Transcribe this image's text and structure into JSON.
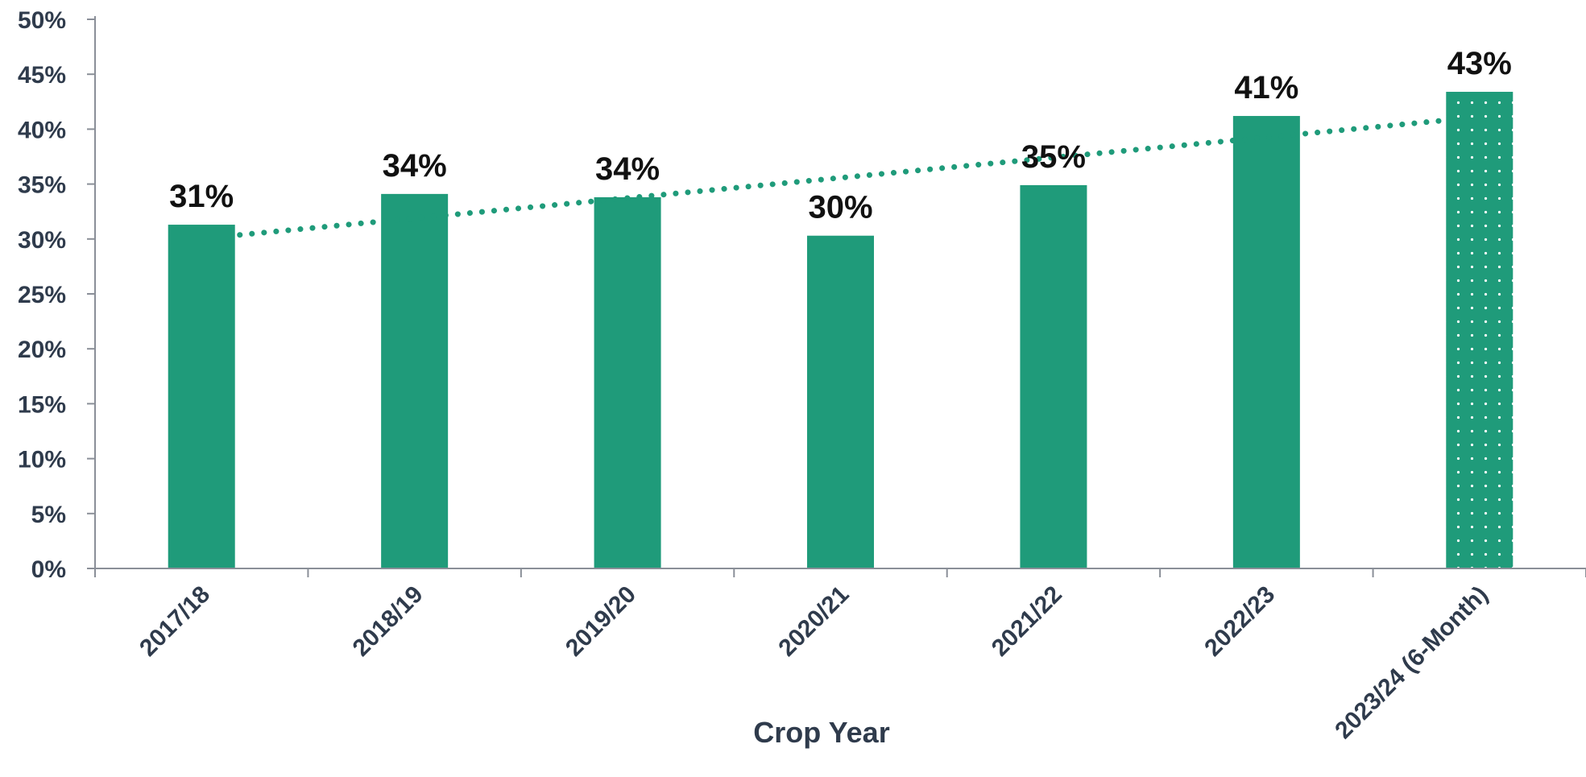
{
  "chart_data": {
    "type": "bar",
    "title": "",
    "xlabel": "Crop Year",
    "ylabel": "",
    "categories": [
      "2017/18",
      "2018/19",
      "2019/20",
      "2020/21",
      "2021/22",
      "2022/23",
      "2023/24 (6-Month)"
    ],
    "values": [
      31.3,
      34.1,
      33.8,
      30.3,
      34.9,
      41.2,
      43.4
    ],
    "data_labels": [
      "31%",
      "34%",
      "34%",
      "30%",
      "35%",
      "41%",
      "43%"
    ],
    "patterned_categories": [
      "2023/24 (6-Month)"
    ],
    "ylim": [
      0,
      50
    ],
    "yticks": [
      0,
      5,
      10,
      15,
      20,
      25,
      30,
      35,
      40,
      45,
      50
    ],
    "ytick_labels": [
      "0%",
      "5%",
      "10%",
      "15%",
      "20%",
      "25%",
      "30%",
      "35%",
      "40%",
      "45%",
      "50%"
    ],
    "trendline": {
      "type": "linear",
      "style": "dotted"
    },
    "grid": false,
    "legend": "none",
    "colors": {
      "bar": "#1f9b7a",
      "trend": "#1f9b7a",
      "axis": "#8a8f98",
      "tick_text": "#2f3b4c",
      "label_text": "#111111"
    }
  }
}
